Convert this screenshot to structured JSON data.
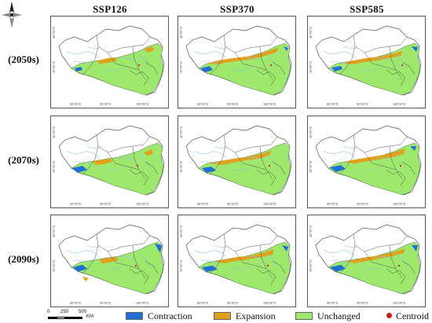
{
  "columns": [
    "SSP126",
    "SSP370",
    "SSP585"
  ],
  "rows": [
    "(2050s)",
    "(2070s)",
    "(2090s)"
  ],
  "axis_labels": {
    "lat_upper": "40°0'0\"N",
    "lat_lower": "30°0'0\"N",
    "lon_left": "80°0'0\"E",
    "lon_mid": "90°0'0\"E",
    "lon_right": "100°0'0\"E"
  },
  "scalebar": {
    "ticks": [
      "0",
      "250",
      "500"
    ],
    "unit": "KM"
  },
  "legend": [
    {
      "label": "Contraction",
      "color": "#1f6fd6",
      "shape": "swatch"
    },
    {
      "label": "Expansion",
      "color": "#e0a21c",
      "shape": "swatch"
    },
    {
      "label": "Unchanged",
      "color": "#9ee86e",
      "shape": "swatch"
    },
    {
      "label": "Centroid",
      "color": "#c81e1e",
      "shape": "dot"
    }
  ],
  "colors": {
    "boundary": "#555555",
    "river": "#8fc6ea",
    "basin": "#2b5a2b"
  },
  "icons": {
    "north_arrow": "compass-north-arrow-icon"
  }
}
